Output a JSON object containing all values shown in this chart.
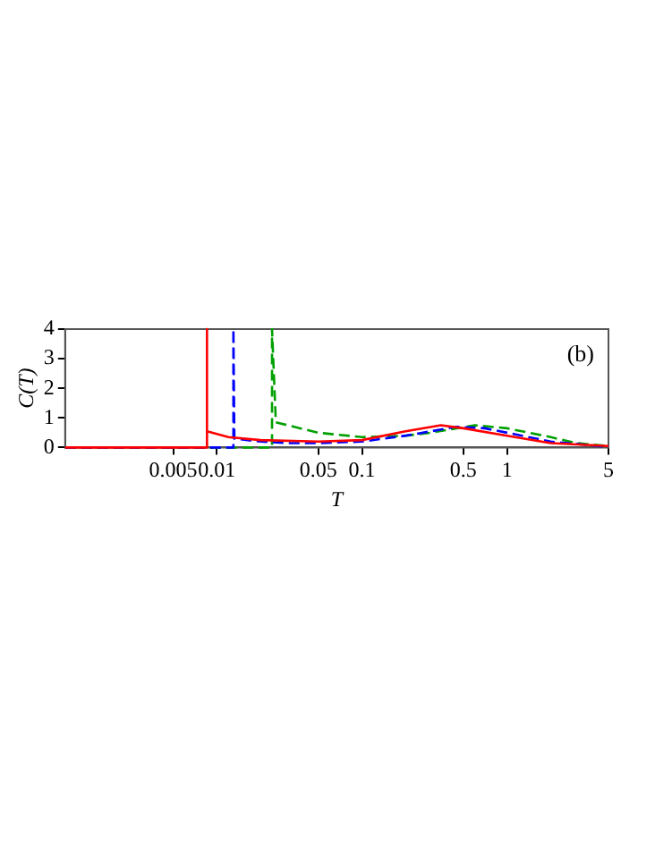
{
  "chart_data": {
    "type": "line",
    "xlabel": "T",
    "ylabel": "C(T)",
    "log": "x",
    "grid": false,
    "legend": false,
    "marker": "none",
    "xlim": [
      0.0009,
      5
    ],
    "xticks": [
      0.005,
      0.01,
      0.05,
      0.1,
      0.5,
      1,
      5
    ],
    "ylim": [
      0,
      4
    ],
    "yticks": [
      0,
      1,
      2,
      3,
      4
    ],
    "annotations": [
      "(b)"
    ],
    "series": [
      {
        "color": "#ff0000",
        "line_style": "solid",
        "x": [
          0.0009,
          0.0085,
          0.0085,
          0.0086,
          0.012,
          0.02,
          0.05,
          0.1,
          0.2,
          0.35,
          0.5,
          1,
          2,
          5
        ],
        "values": [
          0,
          0,
          4,
          0.55,
          0.35,
          0.25,
          0.2,
          0.25,
          0.55,
          0.75,
          0.65,
          0.4,
          0.15,
          0.05
        ]
      },
      {
        "color": "#0000ff",
        "line_style": "dashed",
        "x": [
          0.0009,
          0.013,
          0.013,
          0.0132,
          0.02,
          0.03,
          0.05,
          0.1,
          0.2,
          0.45,
          0.7,
          1,
          2,
          5
        ],
        "values": [
          0,
          0,
          4,
          0.3,
          0.2,
          0.15,
          0.15,
          0.2,
          0.4,
          0.7,
          0.65,
          0.5,
          0.2,
          0.02
        ]
      },
      {
        "color": "#00a000",
        "line_style": "dashed",
        "x": [
          0.0009,
          0.024,
          0.024,
          0.0255,
          0.05,
          0.1,
          0.2,
          0.3,
          0.6,
          1,
          2,
          3,
          5
        ],
        "values": [
          0,
          0,
          4,
          0.85,
          0.5,
          0.35,
          0.4,
          0.5,
          0.75,
          0.65,
          0.35,
          0.15,
          0.05
        ]
      }
    ]
  }
}
